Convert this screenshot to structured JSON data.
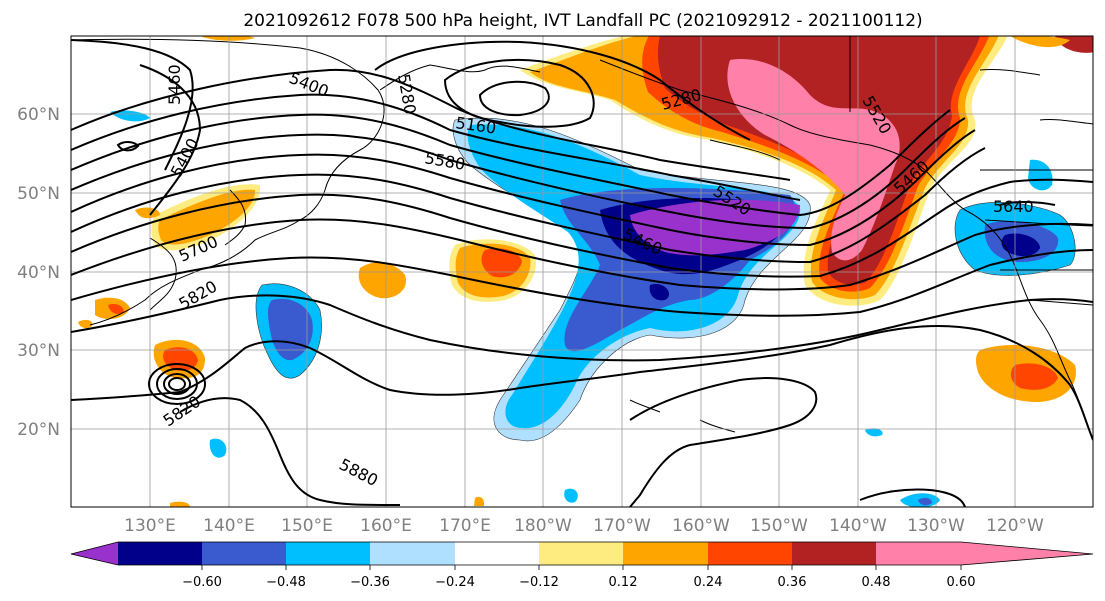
{
  "title": "2021092612 F078 500 hPa height, IVT Landfall PC (2021092912 - 2021100112)",
  "map": {
    "lon_ticks": [
      "130°E",
      "140°E",
      "150°E",
      "160°E",
      "170°E",
      "180°W",
      "170°W",
      "160°W",
      "150°W",
      "140°W",
      "130°W",
      "120°W"
    ],
    "lat_ticks": [
      "60°N",
      "50°N",
      "40°N",
      "30°N",
      "20°N"
    ],
    "grid": true,
    "extent": {
      "lon_west": 120,
      "lon_east": 250,
      "lat_south": 10,
      "lat_north": 70
    }
  },
  "height_contour_labels": [
    "5460",
    "5400",
    "5400",
    "5280",
    "5160",
    "5580",
    "5520",
    "5460",
    "5640",
    "5700",
    "5820",
    "5820",
    "5880",
    "5460",
    "5280",
    "5520"
  ],
  "colorbar": {
    "ticks": [
      "−0.60",
      "−0.48",
      "−0.36",
      "−0.24",
      "−0.12",
      "0.12",
      "0.24",
      "0.36",
      "0.48",
      "0.60"
    ],
    "colors": [
      "#9932cc",
      "#00008b",
      "#3a5bd0",
      "#00bfff",
      "#b0e0ff",
      "#ffffff",
      "#ffec80",
      "#ffa500",
      "#ff4500",
      "#b22222",
      "#ff80a8"
    ]
  }
}
